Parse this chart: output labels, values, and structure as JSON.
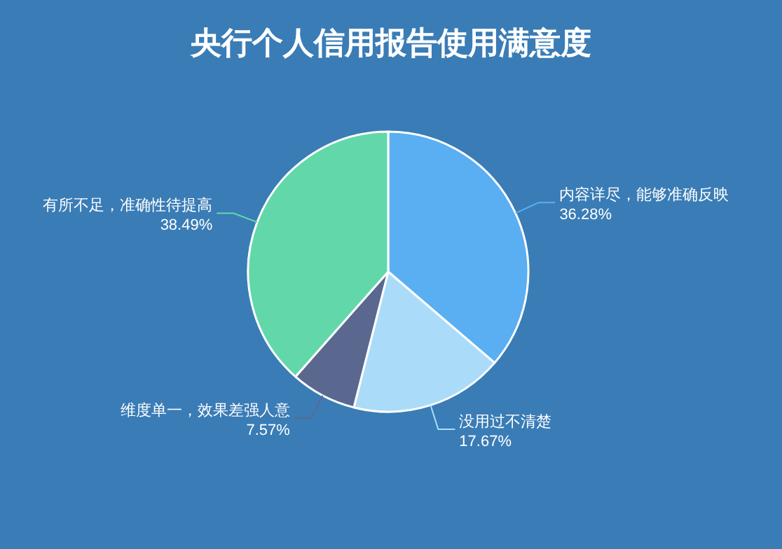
{
  "chart_data": {
    "type": "pie",
    "title": "央行个人信用报告使用满意度",
    "categories": [
      "内容详尽，能够准确反映",
      "没用过不清楚",
      "维度单一，效果差强人意",
      "有所不足，准确性待提高"
    ],
    "values": [
      36.28,
      17.67,
      7.57,
      38.49
    ],
    "colors": [
      "#5aaef2",
      "#aadcfa",
      "#5a6890",
      "#62d8aa"
    ],
    "value_labels": [
      "36.28%",
      "17.67%",
      "7.57%",
      "38.49%"
    ]
  }
}
